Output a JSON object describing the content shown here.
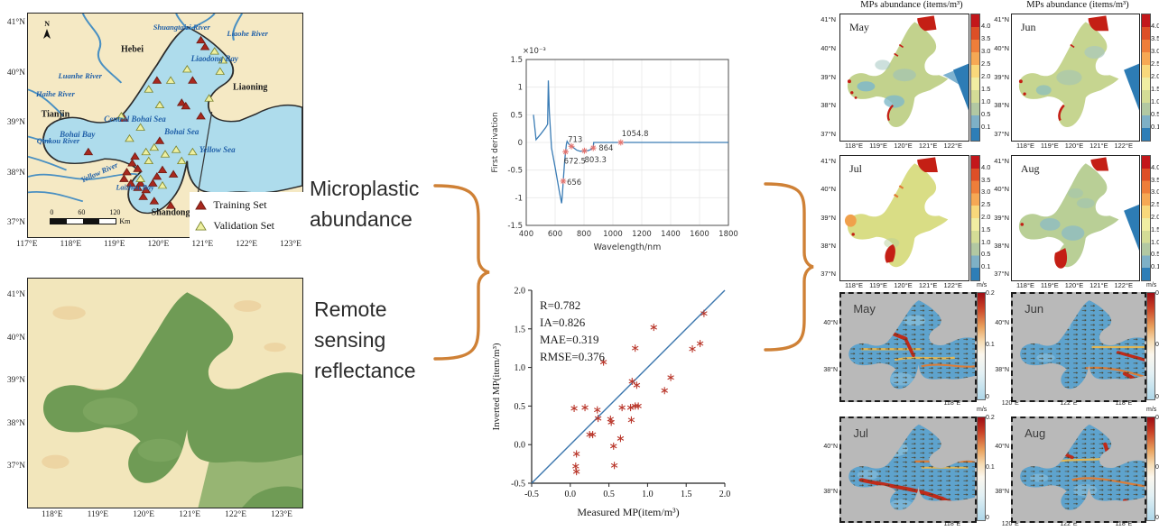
{
  "study_map": {
    "y_ticks": [
      "41°N",
      "40°N",
      "39°N",
      "38°N",
      "37°N"
    ],
    "x_ticks": [
      "117°E",
      "118°E",
      "119°E",
      "120°E",
      "121°E",
      "122°E",
      "123°E"
    ],
    "north_label": "N",
    "provinces": {
      "hebei": "Hebei",
      "tianjin": "Tianjin",
      "liaoning": "Liaoning",
      "shandong": "Shandong"
    },
    "waters": {
      "liaodong_bay": "Liaodong Bay",
      "central_bohai": "Central Bohai Sea",
      "bohai_bay": "Bohai Bay",
      "bohai_sea": "Bohai Sea",
      "yellow_sea": "Yellow Sea",
      "laizhou_bay": "Laizhou Bay"
    },
    "rivers": {
      "shuangtaizi": "Shuangtaizi River",
      "liaohe": "Liaohe River",
      "luanhe": "Luanhe River",
      "haihe": "Haihe River",
      "qinkou": "Qinkou River",
      "yellow": "Yellow River"
    },
    "legend": {
      "training": "Training Set",
      "validation": "Validation Set"
    },
    "scale_ticks": [
      "0",
      "60",
      "120"
    ],
    "scale_unit": "Km"
  },
  "satellite_map": {
    "y_ticks": [
      "41°N",
      "40°N",
      "39°N",
      "38°N",
      "37°N"
    ],
    "x_ticks": [
      "118°E",
      "119°E",
      "120°E",
      "121°E",
      "122°E",
      "123°E"
    ]
  },
  "flow": {
    "label_top": "Microplastic abundance",
    "label_bottom": "Remote sensing reflectance"
  },
  "abundance_maps": {
    "title": "MPs abundance (items/m³)",
    "months": [
      "May",
      "Jun",
      "Jul",
      "Aug"
    ],
    "colorbar_ticks": [
      "4.0",
      "3.5",
      "3.0",
      "2.5",
      "2.0",
      "1.5",
      "1.0",
      "0.5",
      "0.1"
    ],
    "y_ticks": [
      "41°N",
      "40°N",
      "39°N",
      "38°N",
      "37°N"
    ],
    "x_ticks": [
      "118°E",
      "119°E",
      "120°E",
      "121°E",
      "122°E"
    ]
  },
  "current_maps": {
    "unit": "m/s",
    "months": [
      "May",
      "Jun",
      "Jul",
      "Aug"
    ],
    "colorbar_ticks": [
      "0.2",
      "0.1",
      "0"
    ],
    "y_ticks": [
      "40°N",
      "38°N"
    ],
    "x_ticks": [
      "118°E",
      "120°E",
      "122°E"
    ]
  },
  "chart_data": [
    {
      "type": "line",
      "title": "",
      "xlabel": "Wavelength/nm",
      "ylabel": "First derivation",
      "scale_note": "×10⁻³",
      "y_scale": "1e-3",
      "grid": true,
      "xlim": [
        400,
        1800
      ],
      "ylim": [
        -1.5,
        1.5
      ],
      "xticks": [
        400,
        600,
        800,
        1000,
        1200,
        1400,
        1600,
        1800
      ],
      "yticks": [
        -1.5,
        -1,
        -0.5,
        0,
        0.5,
        1,
        1.5
      ],
      "x": [
        450,
        468,
        500,
        535,
        548,
        553,
        560,
        575,
        600,
        630,
        645,
        651,
        656,
        663,
        668,
        672.5,
        678,
        683,
        695,
        713,
        730,
        750,
        775,
        803.3,
        825,
        845,
        864,
        867,
        900,
        1054.8,
        1800
      ],
      "y": [
        0.5,
        0.05,
        0.15,
        0.27,
        0.33,
        1.12,
        0.55,
        -0.1,
        -0.45,
        -0.9,
        -1.1,
        -0.92,
        -0.7,
        -0.45,
        -0.28,
        -0.17,
        -0.03,
        0.02,
        -0.03,
        -0.07,
        -0.1,
        -0.14,
        -0.16,
        -0.15,
        -0.15,
        -0.13,
        -0.1,
        0.0,
        0.0,
        0.0,
        0.0
      ],
      "marked_points": [
        {
          "x": 656,
          "y": -0.7,
          "label": "656"
        },
        {
          "x": 672.5,
          "y": -0.17,
          "label": "672.5"
        },
        {
          "x": 713,
          "y": -0.07,
          "label": "713"
        },
        {
          "x": 803.3,
          "y": -0.15,
          "label": "803.3"
        },
        {
          "x": 864,
          "y": -0.1,
          "label": "864"
        },
        {
          "x": 1054.8,
          "y": 0.0,
          "label": "1054.8"
        }
      ]
    },
    {
      "type": "scatter",
      "xlabel": "Measured MP(item/m³)",
      "ylabel": "Inverted MP(item/m³)",
      "xlim": [
        -0.5,
        2.0
      ],
      "ylim": [
        -0.5,
        2.0
      ],
      "tick_labels": [
        "-0.5",
        "0.0",
        "0.5",
        "1.0",
        "1.5",
        "2.0"
      ],
      "ticks": [
        -0.5,
        0.0,
        0.5,
        1.0,
        1.5,
        2.0
      ],
      "stats": [
        "R=0.782",
        "IA=0.826",
        "MAE=0.319",
        "RMSE=0.376"
      ],
      "identity_line": {
        "from": [
          -0.5,
          -0.5
        ],
        "to": [
          2.0,
          2.0
        ]
      },
      "points": [
        [
          0.05,
          0.47
        ],
        [
          0.19,
          0.48
        ],
        [
          0.08,
          -0.12
        ],
        [
          0.07,
          -0.28
        ],
        [
          0.08,
          -0.35
        ],
        [
          0.25,
          0.13
        ],
        [
          0.29,
          0.13
        ],
        [
          0.35,
          0.45
        ],
        [
          0.36,
          0.34
        ],
        [
          0.43,
          1.07
        ],
        [
          0.52,
          0.33
        ],
        [
          0.53,
          0.29
        ],
        [
          0.56,
          -0.02
        ],
        [
          0.57,
          -0.27
        ],
        [
          0.65,
          0.08
        ],
        [
          0.67,
          0.48
        ],
        [
          0.78,
          0.48
        ],
        [
          0.8,
          0.82
        ],
        [
          0.79,
          0.32
        ],
        [
          0.84,
          1.25
        ],
        [
          0.86,
          0.77
        ],
        [
          0.84,
          0.5
        ],
        [
          0.88,
          0.5
        ],
        [
          1.08,
          1.52
        ],
        [
          1.22,
          0.7
        ],
        [
          1.3,
          0.87
        ],
        [
          1.58,
          1.24
        ],
        [
          1.68,
          1.31
        ],
        [
          1.73,
          1.7
        ]
      ]
    }
  ]
}
